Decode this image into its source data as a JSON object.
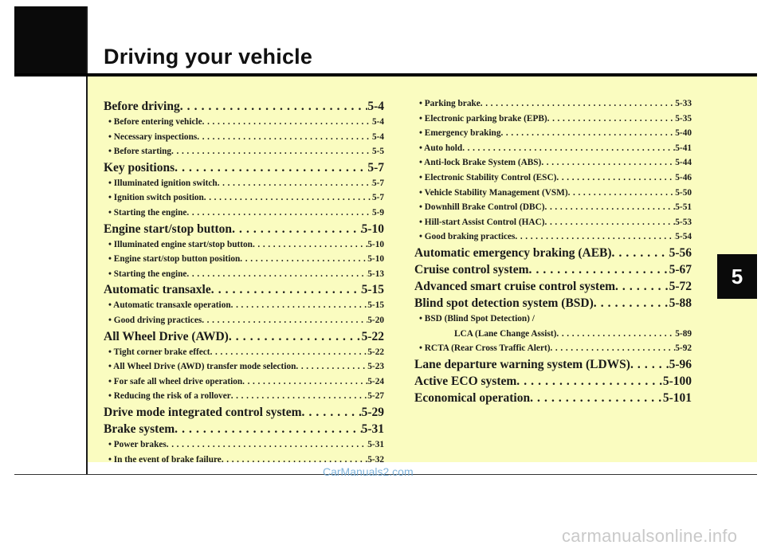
{
  "header": {
    "title": "Driving your vehicle",
    "chapter_tab": "5"
  },
  "left_column": [
    {
      "level": 1,
      "label": "Before driving",
      "page": "5-4"
    },
    {
      "level": 2,
      "label": "• Before entering vehicle",
      "page": "5-4"
    },
    {
      "level": 2,
      "label": "• Necessary inspections",
      "page": "5-4"
    },
    {
      "level": 2,
      "label": "• Before starting",
      "page": "5-5"
    },
    {
      "level": 1,
      "label": "Key positions",
      "page": "5-7"
    },
    {
      "level": 2,
      "label": "• Illuminated ignition switch",
      "page": "5-7"
    },
    {
      "level": 2,
      "label": "• Ignition switch position",
      "page": "5-7"
    },
    {
      "level": 2,
      "label": "• Starting the engine",
      "page": "5-9"
    },
    {
      "level": 1,
      "label": "Engine start/stop button",
      "page": "5-10"
    },
    {
      "level": 2,
      "label": "• Illuminated engine start/stop button",
      "page": "5-10"
    },
    {
      "level": 2,
      "label": "• Engine start/stop button position",
      "page": "5-10"
    },
    {
      "level": 2,
      "label": "• Starting the engine",
      "page": "5-13"
    },
    {
      "level": 1,
      "label": "Automatic transaxle",
      "page": "5-15"
    },
    {
      "level": 2,
      "label": "• Automatic transaxle operation",
      "page": "5-15"
    },
    {
      "level": 2,
      "label": "• Good driving practices",
      "page": "5-20"
    },
    {
      "level": 1,
      "label": "All Wheel Drive (AWD)",
      "page": "5-22"
    },
    {
      "level": 2,
      "label": "• Tight corner brake effect",
      "page": "5-22"
    },
    {
      "level": 2,
      "label": "• All Wheel Drive (AWD) transfer mode selection",
      "page": "5-23"
    },
    {
      "level": 2,
      "label": "• For safe all wheel drive operation",
      "page": "5-24"
    },
    {
      "level": 2,
      "label": "• Reducing the risk of a rollover",
      "page": "5-27"
    },
    {
      "level": 1,
      "label": "Drive mode integrated control system",
      "page": "5-29"
    },
    {
      "level": 1,
      "label": "Brake system",
      "page": "5-31"
    },
    {
      "level": 2,
      "label": "• Power brakes",
      "page": "5-31"
    },
    {
      "level": 2,
      "label": "• In the event of brake failure",
      "page": "5-32"
    }
  ],
  "right_column": [
    {
      "level": 2,
      "label": "• Parking brake",
      "page": "5-33"
    },
    {
      "level": 2,
      "label": "• Electronic parking brake (EPB)",
      "page": "5-35"
    },
    {
      "level": 2,
      "label": "• Emergency braking",
      "page": "5-40"
    },
    {
      "level": 2,
      "label": "• Auto hold",
      "page": "5-41"
    },
    {
      "level": 2,
      "label": "• Anti-lock Brake System (ABS)",
      "page": "5-44"
    },
    {
      "level": 2,
      "label": "• Electronic Stability Control (ESC)",
      "page": "5-46"
    },
    {
      "level": 2,
      "label": "• Vehicle Stability Management (VSM)",
      "page": "5-50"
    },
    {
      "level": 2,
      "label": "• Downhill Brake Control (DBC)",
      "page": "5-51"
    },
    {
      "level": 2,
      "label": "• Hill-start Assist Control (HAC)",
      "page": "5-53"
    },
    {
      "level": 2,
      "label": "• Good braking practices",
      "page": "5-54"
    },
    {
      "level": 1,
      "label": "Automatic emergency braking (AEB)",
      "page": "5-56"
    },
    {
      "level": 1,
      "label": "Cruise control system",
      "page": "5-67"
    },
    {
      "level": 1,
      "label": "Advanced smart cruise control system",
      "page": "5-72"
    },
    {
      "level": 1,
      "label": "Blind spot detection system (BSD)",
      "page": "5-88"
    },
    {
      "level": 3,
      "label": "• BSD (Blind Spot Detection) /"
    },
    {
      "level": 2,
      "label": "LCA (Lane Change Assist)",
      "page": "5-89",
      "indent": true
    },
    {
      "level": 2,
      "label": "• RCTA (Rear Cross Traffic Alert)",
      "page": "5-92"
    },
    {
      "level": 1,
      "label": "Lane departure warning system (LDWS)",
      "page": "5-96"
    },
    {
      "level": 1,
      "label": "Active ECO system",
      "page": "5-100"
    },
    {
      "level": 1,
      "label": "Economical operation",
      "page": "5-101"
    }
  ],
  "watermark": "CarManuals2.com",
  "footer_watermark": "carmanualsonline.info"
}
